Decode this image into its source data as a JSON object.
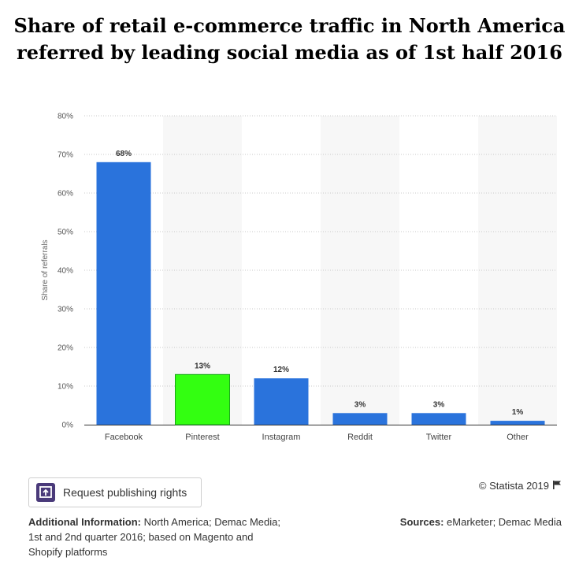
{
  "title_line1": "Share of retail e-commerce traffic in North America",
  "title_line2": "referred by leading social media as of 1st half 2016",
  "chart_data": {
    "type": "bar",
    "categories": [
      "Facebook",
      "Pinterest",
      "Instagram",
      "Reddit",
      "Twitter",
      "Other"
    ],
    "values": [
      68,
      13,
      12,
      3,
      3,
      1
    ],
    "data_labels": [
      "68%",
      "13%",
      "12%",
      "3%",
      "3%",
      "1%"
    ],
    "bar_colors": [
      "#2a73dc",
      "#33ff11",
      "#2a73dc",
      "#2a73dc",
      "#2a73dc",
      "#2a73dc"
    ],
    "ylabel": "Share of referrals",
    "ylim": [
      0,
      80
    ],
    "yticks": [
      0,
      10,
      20,
      30,
      40,
      50,
      60,
      70,
      80
    ],
    "ytick_labels": [
      "0%",
      "10%",
      "20%",
      "30%",
      "40%",
      "50%",
      "60%",
      "70%",
      "80%"
    ],
    "grid": true,
    "band_color": "#f7f7f7"
  },
  "footer": {
    "publish_label": "Request publishing rights",
    "copyright": "© Statista 2019",
    "additional_heading": "Additional Information:",
    "additional_text": "North America; Demac Media; 1st and 2nd quarter 2016; based on Magento and Shopify platforms",
    "sources_heading": "Sources:",
    "sources_text": "eMarketer; Demac Media"
  }
}
